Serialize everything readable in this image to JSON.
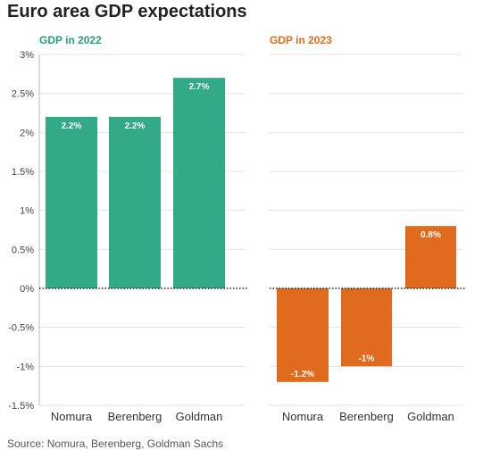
{
  "title": "Euro area GDP expectations",
  "source": "Source: Nomura, Berenberg, Goldman Sachs",
  "colors": {
    "green": "#32a987",
    "orange": "#e06b1f",
    "grid": "#e3e3e3",
    "axis": "#bbbbbb"
  },
  "chart_data": [
    {
      "type": "bar",
      "title": "GDP in 2022",
      "title_color": "#2a9d7a",
      "color": "#32a987",
      "categories": [
        "Nomura",
        "Berenberg",
        "Goldman"
      ],
      "values": [
        2.2,
        2.2,
        2.7
      ],
      "data_labels": [
        "2.2%",
        "2.2%",
        "2.7%"
      ],
      "ylim": [
        -1.5,
        3
      ],
      "yticks": [
        3,
        2.5,
        2,
        1.5,
        1,
        0.5,
        0,
        -0.5,
        -1,
        -1.5
      ],
      "ytick_labels": [
        "3%",
        "2.5%",
        "2%",
        "1.5%",
        "1%",
        "0.5%",
        "0%",
        "-0.5%",
        "-1%",
        "-1.5%"
      ],
      "grid": true,
      "zero_line": "dotted"
    },
    {
      "type": "bar",
      "title": "GDP in 2023",
      "title_color": "#e06b1f",
      "color": "#e06b1f",
      "categories": [
        "Nomura",
        "Berenberg",
        "Goldman"
      ],
      "values": [
        -1.2,
        -1.0,
        0.8
      ],
      "data_labels": [
        "-1.2%",
        "-1%",
        "0.8%"
      ],
      "ylim": [
        -1.5,
        3
      ],
      "grid": true,
      "zero_line": "dotted"
    }
  ]
}
